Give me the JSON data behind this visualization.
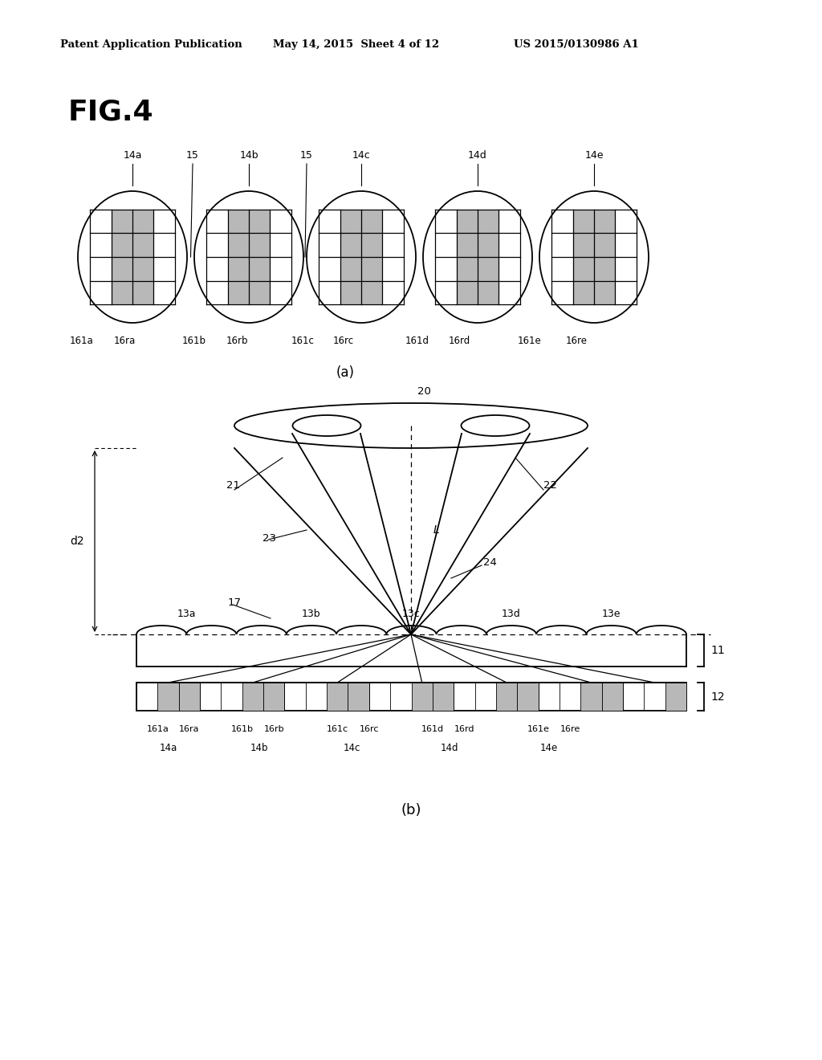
{
  "bg_color": "#ffffff",
  "header_text": "Patent Application Publication",
  "header_date": "May 14, 2015  Sheet 4 of 12",
  "header_patent": "US 2015/0130986 A1",
  "fig_label": "FIG.4",
  "fig_a_label": "(a)",
  "fig_b_label": "(b)",
  "black": "#000000",
  "gray_light": "#b8b8b8",
  "gray_medium": "#909090"
}
